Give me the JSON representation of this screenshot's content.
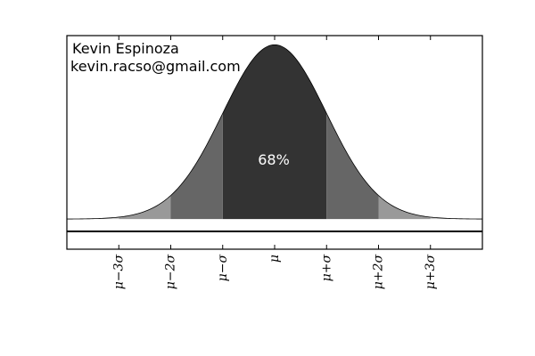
{
  "chart_data": {
    "type": "area",
    "title": "",
    "xlabel": "",
    "ylabel": "",
    "distribution": "normal",
    "mean": 0,
    "sigma": 1,
    "xlim": [
      -4,
      4
    ],
    "ylim": [
      -0.069,
      0.42
    ],
    "grid": false,
    "annotations": [
      "Kevin Espinoza",
      "kevin.racso@gmail.com"
    ],
    "center_label": "68%",
    "ticks": [
      {
        "x": -3,
        "label": "μ−3σ"
      },
      {
        "x": -2,
        "label": "μ−2σ"
      },
      {
        "x": -1,
        "label": "μ−σ"
      },
      {
        "x": 0,
        "label": "μ"
      },
      {
        "x": 1,
        "label": "μ+σ"
      },
      {
        "x": 2,
        "label": "μ+2σ"
      },
      {
        "x": 3,
        "label": "μ+3σ"
      }
    ],
    "regions": [
      {
        "from": -1,
        "to": 1,
        "color": "#333333"
      },
      {
        "from": -2,
        "to": -1,
        "color": "#666666"
      },
      {
        "from": 1,
        "to": 2,
        "color": "#666666"
      },
      {
        "from": -3,
        "to": -2,
        "color": "#999999"
      },
      {
        "from": 2,
        "to": 3,
        "color": "#999999"
      },
      {
        "from": -4,
        "to": -3,
        "color": "#cccccc"
      },
      {
        "from": 3,
        "to": 4,
        "color": "#cccccc"
      }
    ]
  }
}
